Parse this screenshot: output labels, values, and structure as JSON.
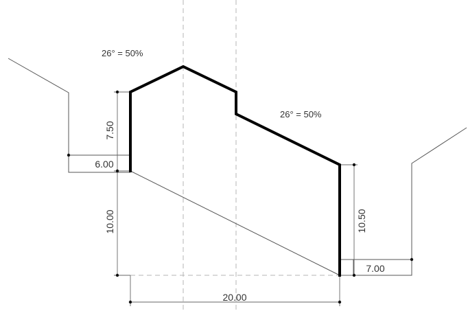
{
  "annotations": {
    "slope_left": "26° = 50%",
    "slope_right": "26° = 50%"
  },
  "dimensions": {
    "height_left_upper": "7.50",
    "setback_left": "6.00",
    "height_left_lower": "10.00",
    "height_right": "10.50",
    "setback_right": "7.00",
    "width_bottom": "20.00"
  }
}
